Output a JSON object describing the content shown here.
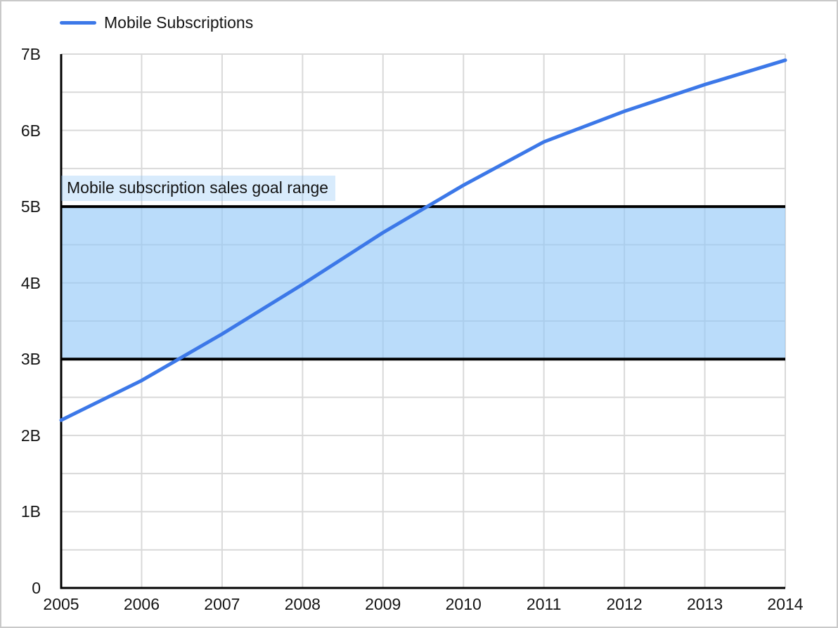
{
  "legend": {
    "label": "Mobile Subscriptions"
  },
  "annotation": {
    "label": "Mobile subscription sales goal range"
  },
  "colors": {
    "line": "#3c78e8",
    "band_base": "#90c7f7",
    "band_fill_alpha": 0.62,
    "annotation_bg_alpha": 0.35,
    "grid": "#d9d9d9",
    "axis": "#000000",
    "band_border": "#000000",
    "text": "#141414",
    "frame_border": "#c9c9c9"
  },
  "chart_data": {
    "type": "line",
    "title": "",
    "xlabel": "",
    "ylabel": "",
    "unit": "billions",
    "x": [
      2005,
      2006,
      2007,
      2008,
      2009,
      2010,
      2011,
      2012,
      2013,
      2014
    ],
    "x_ticks": [
      "2005",
      "2006",
      "2007",
      "2008",
      "2009",
      "2010",
      "2011",
      "2012",
      "2013",
      "2014"
    ],
    "series": [
      {
        "name": "Mobile Subscriptions",
        "values": [
          2.2,
          2.72,
          3.33,
          3.98,
          4.66,
          5.28,
          5.85,
          6.25,
          6.6,
          6.92
        ]
      }
    ],
    "ylim": [
      0,
      7
    ],
    "y_ticks": [
      "0",
      "1B",
      "2B",
      "3B",
      "4B",
      "5B",
      "6B",
      "7B"
    ],
    "y_tick_step": 1,
    "y_grid_step": 0.5,
    "grid": true,
    "legend_position": "top-left",
    "band": {
      "from": 3,
      "to": 5,
      "label": "Mobile subscription sales goal range"
    }
  }
}
